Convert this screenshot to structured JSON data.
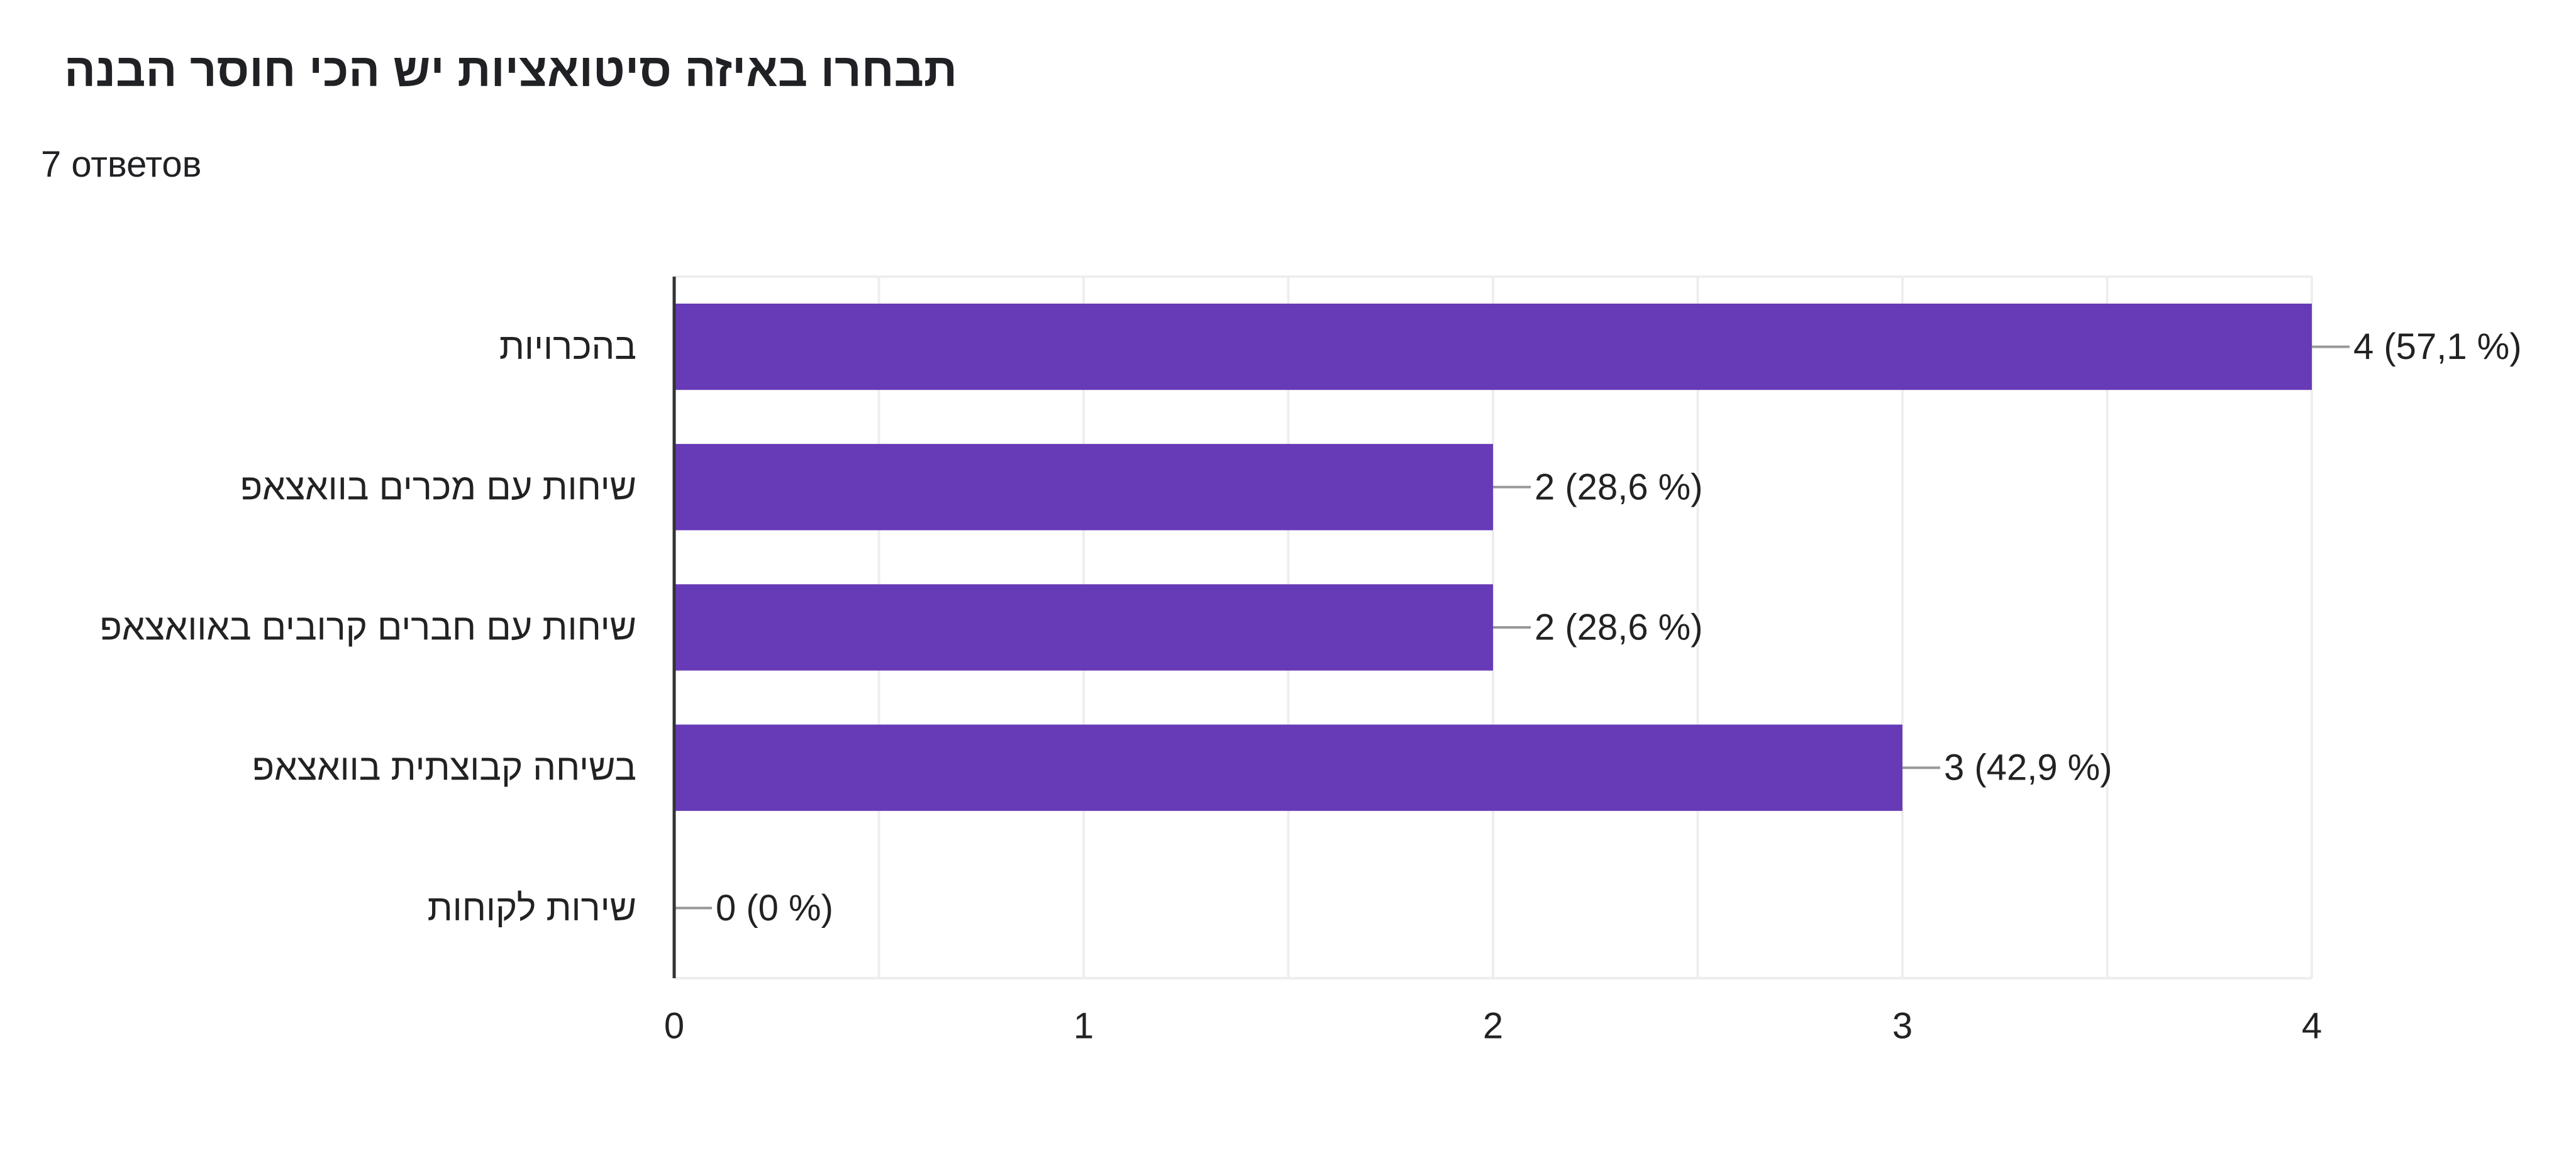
{
  "question": {
    "title": "תבחרו באיזה סיטואציות יש הכי חוסר הבנה",
    "response_count": "7 ответов"
  },
  "colors": {
    "bar": "#673ab7",
    "grid": "#eeeeee",
    "axis": "#333333",
    "leader": "#999999",
    "text": "#222222"
  },
  "chart_data": {
    "type": "bar",
    "orientation": "horizontal",
    "title": "",
    "xlabel": "",
    "ylabel": "",
    "xlim": [
      0,
      4
    ],
    "grid": true,
    "x_ticks": [
      "0",
      "1",
      "2",
      "3",
      "4"
    ],
    "categories": [
      "בהכרויות",
      "שיחות עם מכרים בוואצאפ",
      "שיחות עם חברים קרובים באוואצאפ",
      "בשיחה קבוצתית בוואצאפ",
      "שירות לקוחות"
    ],
    "values": [
      4,
      2,
      2,
      3,
      0
    ],
    "data_labels": [
      "4 (57,1 %)",
      "2 (28,6 %)",
      "2 (28,6 %)",
      "3 (42,9 %)",
      "0 (0 %)"
    ]
  }
}
